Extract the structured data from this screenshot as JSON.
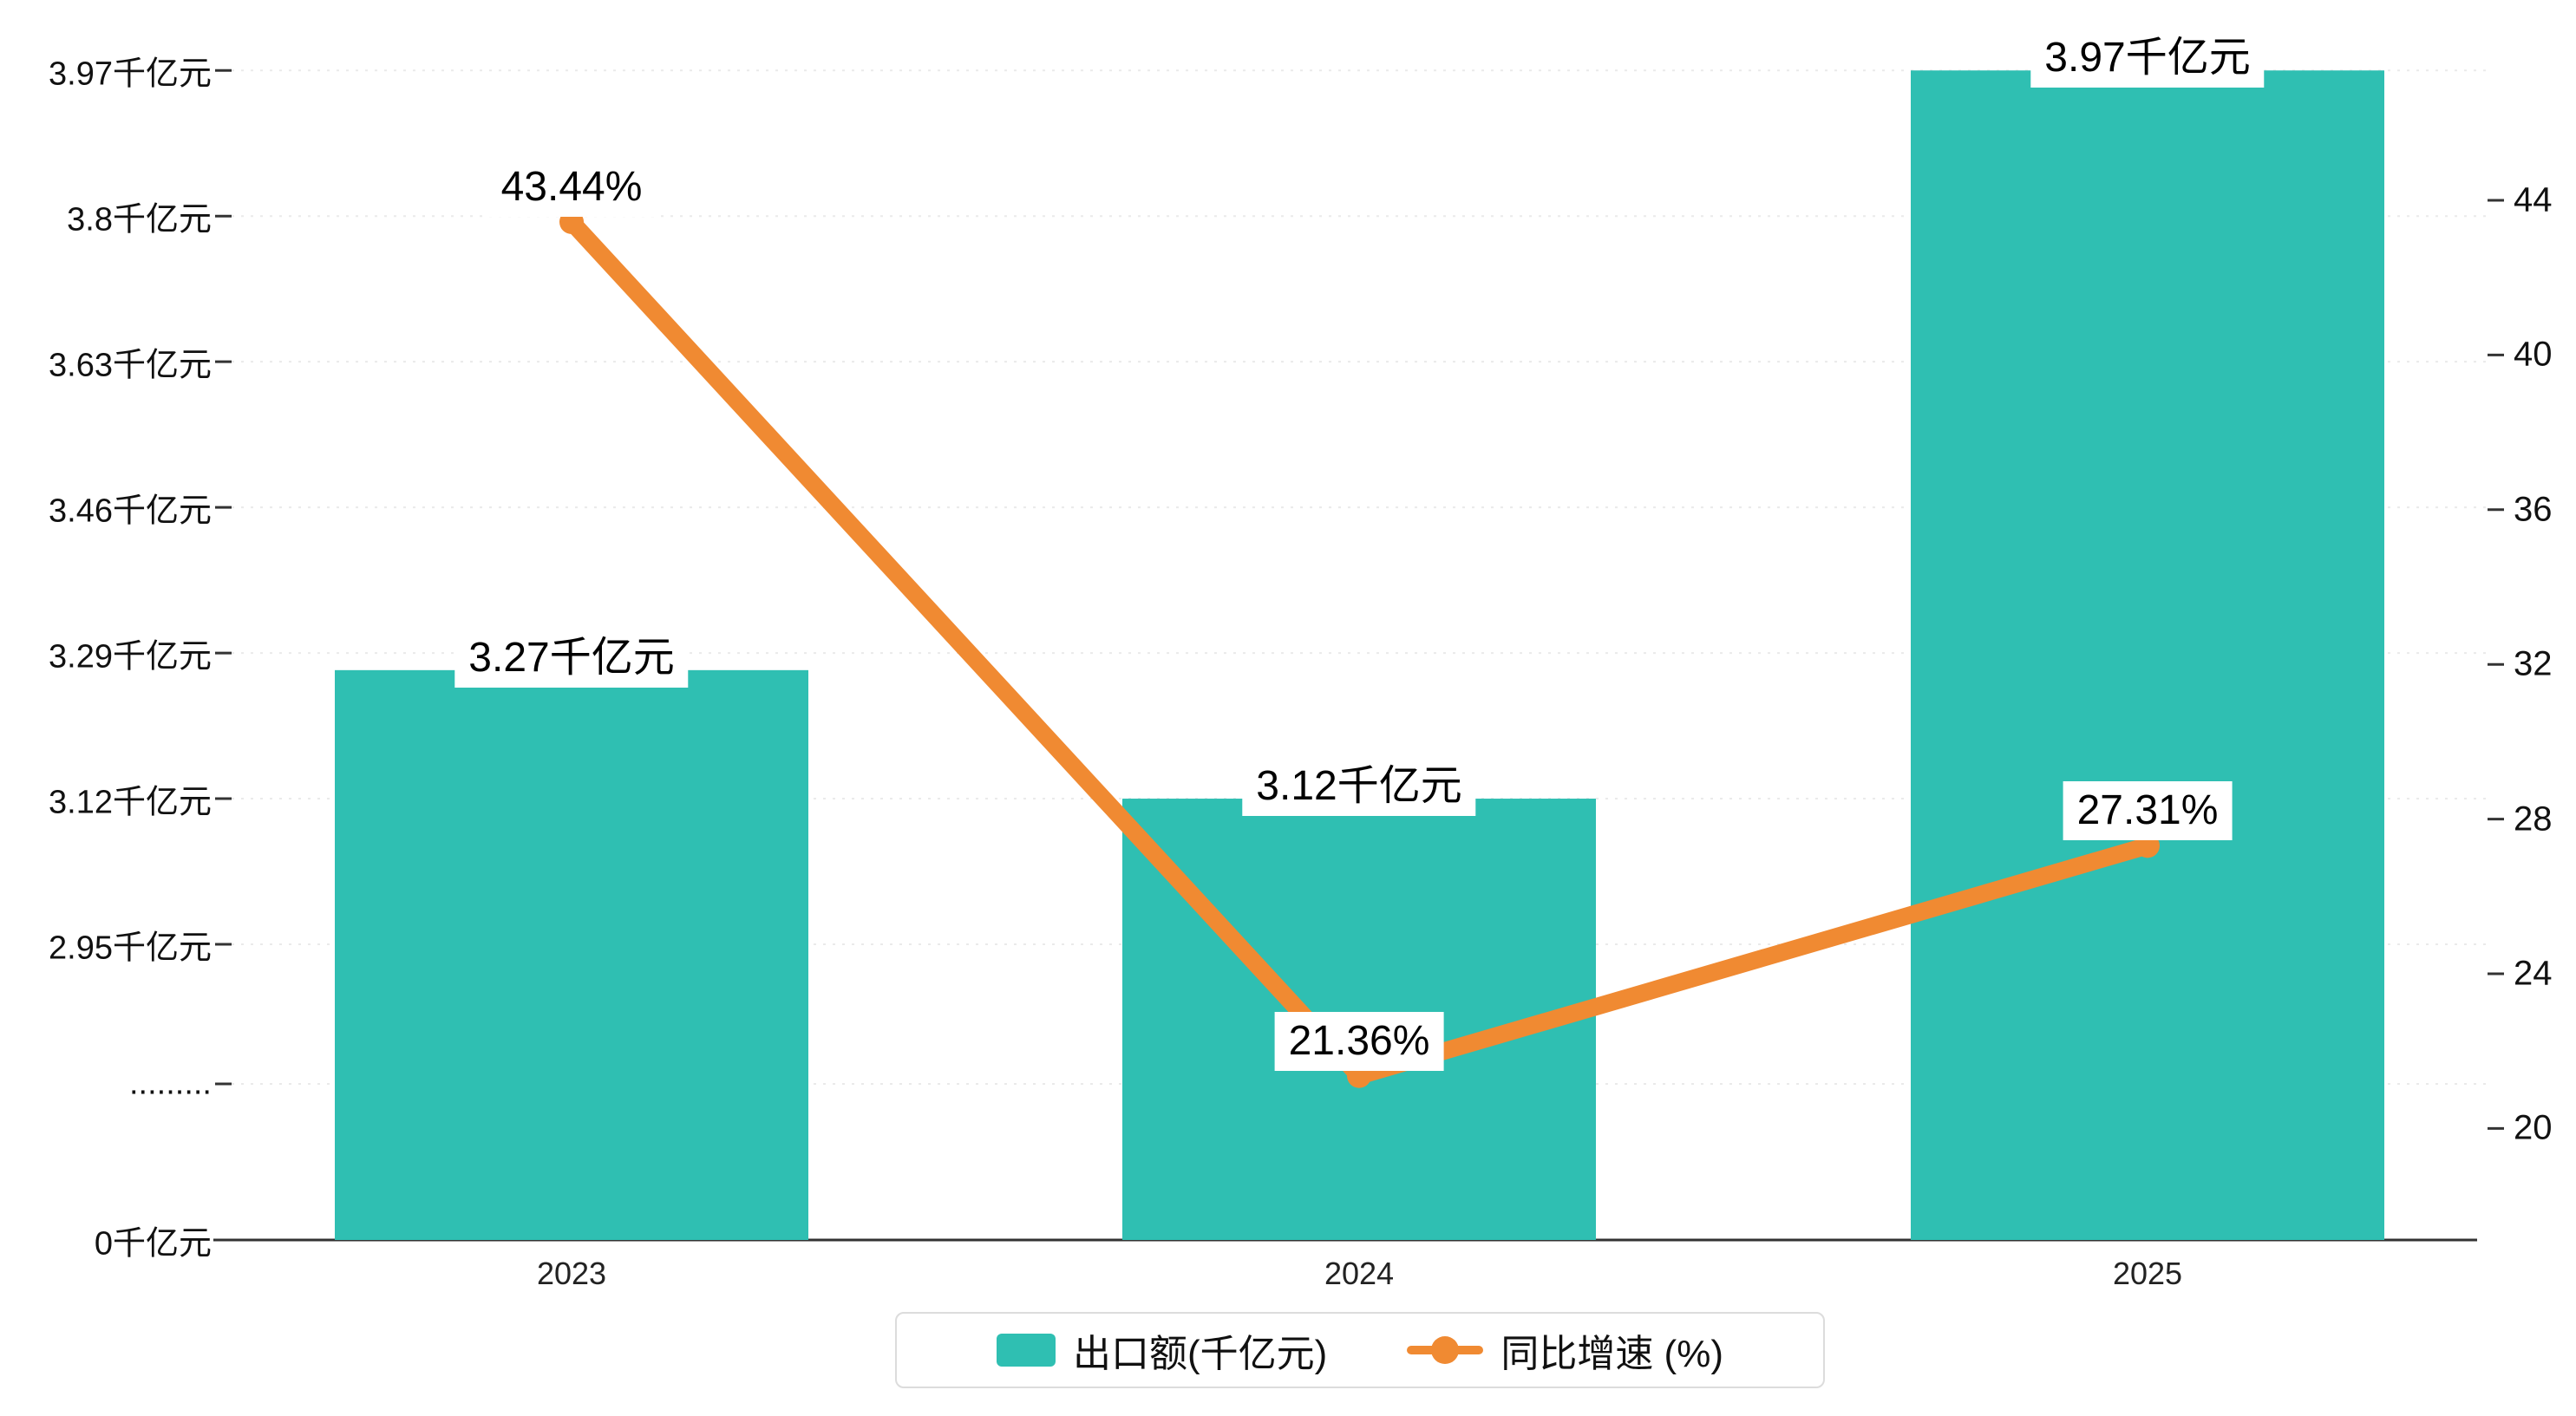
{
  "chart_data": {
    "type": "bar+line",
    "title": "",
    "categories": [
      "2023",
      "2024",
      "2025"
    ],
    "series": [
      {
        "name": "出口额(千亿元)",
        "type": "bar",
        "unit": "千亿元",
        "axis": "left",
        "values": [
          3.27,
          3.12,
          3.97
        ],
        "labels": [
          "3.27千亿元",
          "3.12千亿元",
          "3.97千亿元"
        ],
        "color": "#2FBFB2"
      },
      {
        "name": "同比增速 (%)",
        "type": "line",
        "unit": "%",
        "axis": "right",
        "values": [
          43.44,
          21.36,
          27.31
        ],
        "labels": [
          "43.44%",
          "21.36%",
          "27.31%"
        ],
        "color": "#F08A32"
      }
    ],
    "left_axis": {
      "has_break": true,
      "ticks": [
        {
          "label": "3.97千亿元",
          "value": 3.97
        },
        {
          "label": "3.8千亿元",
          "value": 3.8
        },
        {
          "label": "3.63千亿元",
          "value": 3.63
        },
        {
          "label": "3.46千亿元",
          "value": 3.46
        },
        {
          "label": "3.29千亿元",
          "value": 3.29
        },
        {
          "label": "3.12千亿元",
          "value": 3.12
        },
        {
          "label": "2.95千亿元",
          "value": 2.95
        },
        {
          "label": ".........",
          "value": null
        },
        {
          "label": "0千亿元",
          "value": 0
        }
      ]
    },
    "right_axis": {
      "ticks": [
        "44",
        "40",
        "36",
        "32",
        "28",
        "24",
        "20"
      ],
      "tick_values": [
        44,
        40,
        36,
        32,
        28,
        24,
        20
      ]
    },
    "legend": [
      {
        "label": "出口额(千亿元)",
        "marker": "bar",
        "color": "#2FBFB2"
      },
      {
        "label": "同比增速 (%)",
        "marker": "line",
        "color": "#F08A32"
      }
    ],
    "grid": true
  },
  "colors": {
    "bar": "#2FBFB2",
    "line": "#F08A32",
    "axis": "#333333",
    "grid": "#EAEAEA",
    "label_bg": "#FFFFFF",
    "text": "#000000"
  }
}
